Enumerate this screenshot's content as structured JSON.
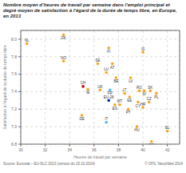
{
  "chart_data": {
    "type": "scatter",
    "title": "Nombre moyen d’heures de travail par semaine dans l’emploi principal et",
    "subtitle": "degré moyen de satisfaction à l’égard de la durée de temps libre, en Europe, en 2013",
    "x_label": "Heures de travail par semaine",
    "y_label": "Satisfaction à l’égard de la durée de temps libre",
    "annotations": [
      "Source: Eurostat – EU-SLC 2013 (version du 15.10.2014)",
      "© OFS, Neuchâtel 2014"
    ],
    "xlim": [
      30,
      43
    ],
    "ylim": [
      6.8,
      8.1
    ],
    "xticks": [
      30,
      32,
      34,
      36,
      38,
      40,
      42
    ],
    "yticks": [
      6.8,
      {
        "value": 7.0,
        "label": "7.0"
      },
      7.2,
      7.4,
      7.6,
      7.8,
      {
        "value": 8.0,
        "label": "8.0"
      }
    ],
    "grid": true,
    "labels": [
      "NL",
      "DK",
      "NO",
      "FI",
      "SE",
      "AT",
      "LU",
      "BE",
      "IS",
      "LV",
      "CH",
      "IE",
      "UK",
      "FR",
      "LT",
      "EE",
      "RO",
      "SI",
      "SK",
      "PL",
      "EU-28",
      "ES",
      "MT",
      "CY",
      "CZ",
      "PT",
      "HR",
      "DE",
      "IT",
      "HU",
      "EL",
      "BG"
    ],
    "x": [
      30.5,
      33.5,
      33.5,
      37.2,
      36.3,
      37.5,
      37.0,
      37.8,
      40.0,
      39.0,
      35.1,
      35.5,
      36.5,
      37.3,
      38.5,
      38.9,
      39.7,
      40.1,
      40.6,
      41.1,
      37.2,
      37.7,
      38.1,
      39.6,
      40.5,
      38.8,
      40.0,
      35.0,
      37.0,
      39.5,
      42.0,
      40.7
    ],
    "values": [
      7.95,
      8.05,
      7.75,
      7.9,
      7.72,
      7.72,
      7.62,
      7.56,
      7.85,
      7.56,
      7.46,
      7.43,
      7.42,
      7.42,
      7.38,
      7.34,
      7.41,
      7.41,
      7.41,
      7.38,
      7.3,
      7.25,
      7.25,
      7.28,
      7.28,
      7.2,
      7.22,
      7.13,
      7.05,
      7.0,
      6.95,
      6.83
    ],
    "colors": [
      "#f5a623",
      "#f5a623",
      "#f5a623",
      "#f5a623",
      "#f5a623",
      "#f5a623",
      "#f5a623",
      "#f5a623",
      "#f5a623",
      "#f5a623",
      "#cc0000",
      "#f5a623",
      "#f5a623",
      "#4db8e8",
      "#f5a623",
      "#f5a623",
      "#f5a623",
      "#f5a623",
      "#f5a623",
      "#f5a623",
      "#003399",
      "#f5a623",
      "#f5a623",
      "#f5a623",
      "#f5a623",
      "#f5a623",
      "#f5a623",
      "#f5a623",
      "#4db8e8",
      "#f5a623",
      "#f5a623",
      "#f5a623"
    ]
  }
}
